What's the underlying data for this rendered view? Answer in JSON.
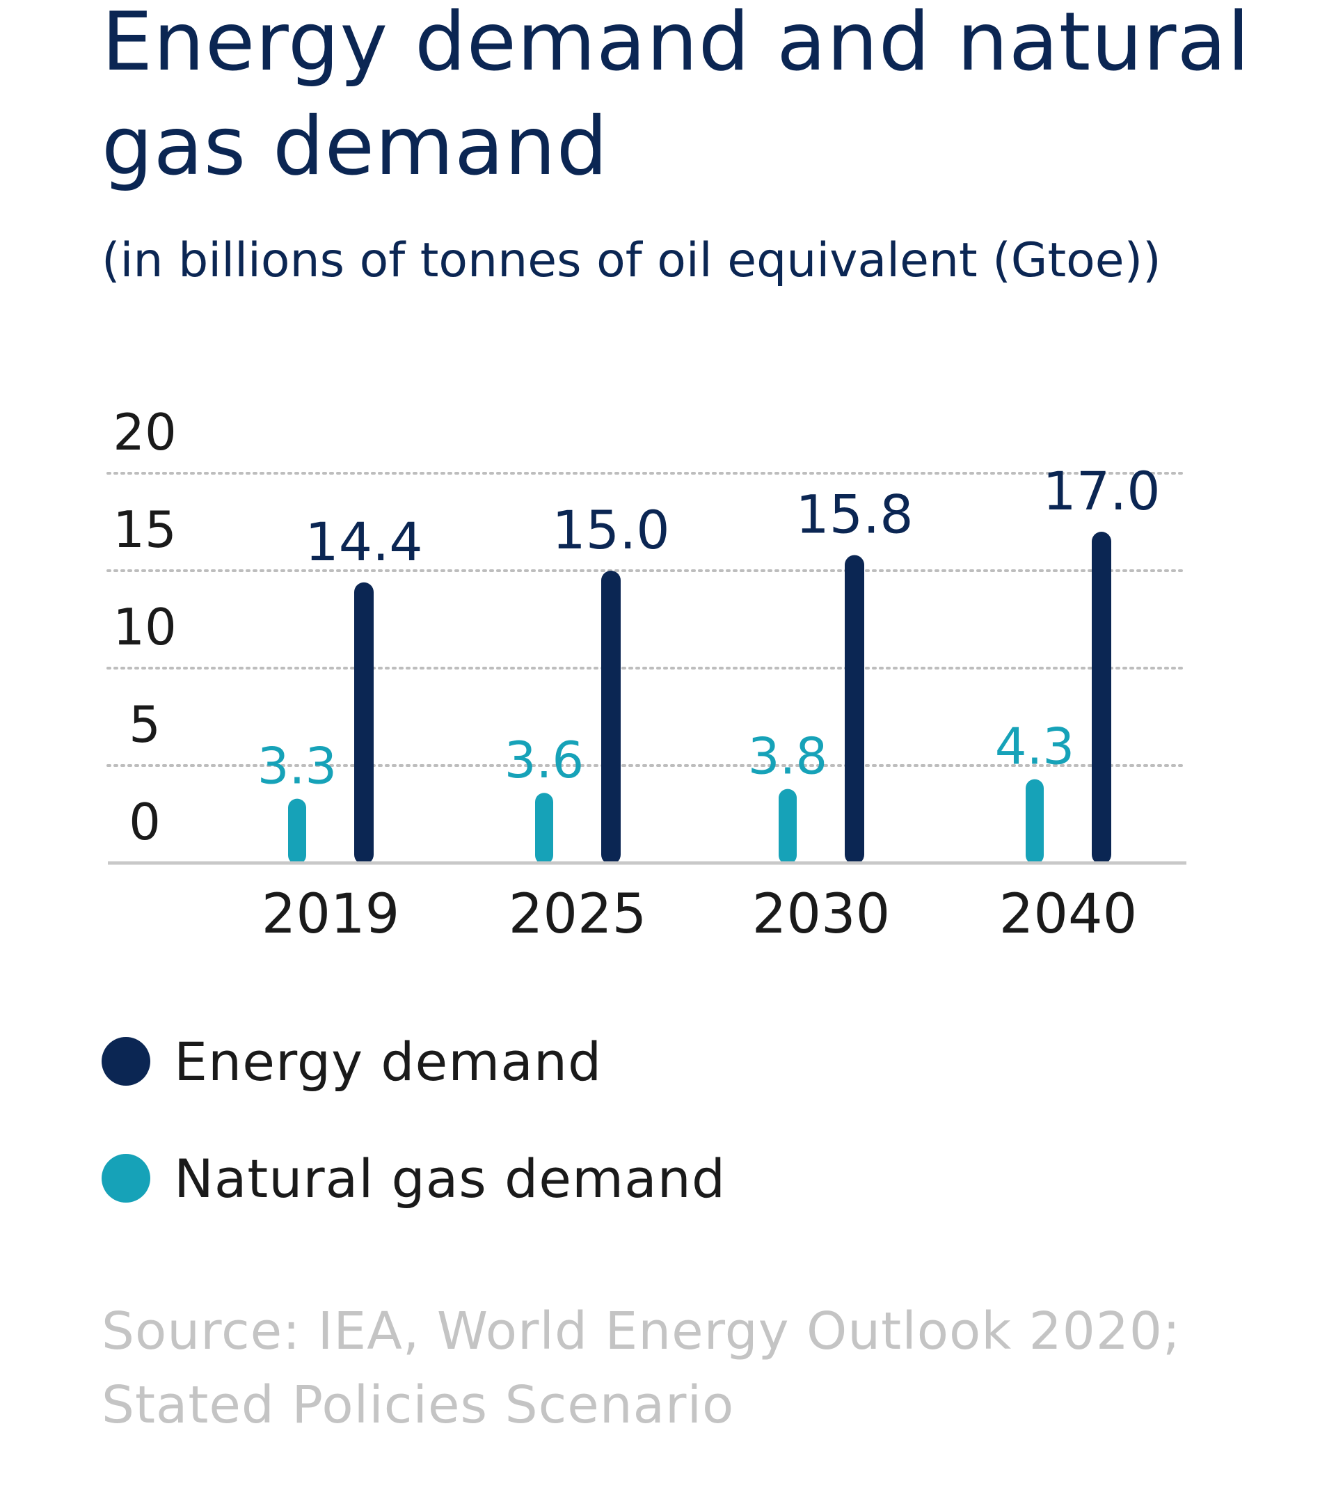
{
  "title": "Energy demand and natural gas demand",
  "subtitle": "(in billions of tonnes of oil equivalent (Gtoe))",
  "source": "Source: IEA, World Energy Outlook 2020; Stated Policies Scenario",
  "colors": {
    "energy": "#0b2653",
    "gas": "#16a2b8",
    "axis_text": "#1a1a1a",
    "grid": "#bdbdbd",
    "source_text": "#c4c4c4"
  },
  "chart_data": {
    "type": "bar",
    "categories": [
      "2019",
      "2025",
      "2030",
      "2040"
    ],
    "series": [
      {
        "name": "Natural gas demand",
        "values": [
          3.3,
          3.6,
          3.8,
          4.3
        ],
        "labels": [
          "3.3",
          "3.6",
          "3.8",
          "4.3"
        ]
      },
      {
        "name": "Energy demand",
        "values": [
          14.4,
          15.0,
          15.8,
          17.0
        ],
        "labels": [
          "14.4",
          "15.0",
          "15.8",
          "17.0"
        ]
      }
    ],
    "yticks": [
      "0",
      "5",
      "10",
      "15",
      "20"
    ],
    "ylim": [
      0,
      20
    ],
    "grid": true,
    "legend_position": "bottom"
  },
  "legend": [
    {
      "label": "Energy demand",
      "color_key": "energy"
    },
    {
      "label": "Natural gas demand",
      "color_key": "gas"
    }
  ]
}
